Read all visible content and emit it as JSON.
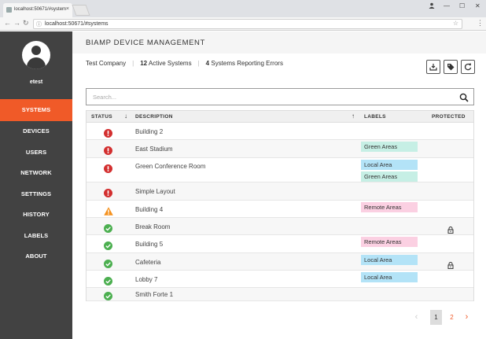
{
  "browser": {
    "tab_title": "localhost:50671/#system",
    "url": "localhost:50671/#systems",
    "tab_close": "×",
    "window_min": "—",
    "window_max": "☐",
    "window_close": "✕"
  },
  "sidebar": {
    "username": "etest",
    "items": [
      {
        "label": "SYSTEMS",
        "active": true
      },
      {
        "label": "DEVICES",
        "active": false
      },
      {
        "label": "USERS",
        "active": false
      },
      {
        "label": "NETWORK",
        "active": false
      },
      {
        "label": "SETTINGS",
        "active": false
      },
      {
        "label": "HISTORY",
        "active": false
      },
      {
        "label": "LABELS",
        "active": false
      },
      {
        "label": "ABOUT",
        "active": false
      }
    ]
  },
  "header": {
    "title": "BIAMP DEVICE MANAGEMENT"
  },
  "summary": {
    "company": "Test Company",
    "active_count": "12",
    "active_label": "Active Systems",
    "error_count": "4",
    "error_label": "Systems Reporting Errors"
  },
  "search": {
    "placeholder": "Search..."
  },
  "table": {
    "columns": {
      "status": "STATUS",
      "status_sort": "↓",
      "description": "DESCRIPTION",
      "description_sort": "↑",
      "labels": "LABELS",
      "protected": "PROTECTED"
    },
    "rows": [
      {
        "status": "error",
        "description": "Building 2",
        "labels": [],
        "protected": false
      },
      {
        "status": "error",
        "description": "East Stadium",
        "labels": [
          {
            "text": "Green Areas",
            "color": "green"
          }
        ],
        "protected": false
      },
      {
        "status": "error",
        "description": "Green Conference Room",
        "labels": [
          {
            "text": "Local Area",
            "color": "blue"
          },
          {
            "text": "Green Areas",
            "color": "green"
          }
        ],
        "protected": false
      },
      {
        "status": "error",
        "description": "Simple Layout",
        "labels": [],
        "protected": false
      },
      {
        "status": "warning",
        "description": "Building 4",
        "labels": [
          {
            "text": "Remote Areas",
            "color": "pink"
          }
        ],
        "protected": false
      },
      {
        "status": "ok",
        "description": "Break Room",
        "labels": [],
        "protected": true
      },
      {
        "status": "ok",
        "description": "Building 5",
        "labels": [
          {
            "text": "Remote Areas",
            "color": "pink"
          }
        ],
        "protected": false
      },
      {
        "status": "ok",
        "description": "Cafeteria",
        "labels": [
          {
            "text": "Local Area",
            "color": "blue"
          }
        ],
        "protected": true
      },
      {
        "status": "ok",
        "description": "Lobby 7",
        "labels": [
          {
            "text": "Local Area",
            "color": "blue"
          }
        ],
        "protected": false
      },
      {
        "status": "ok",
        "description": "Smith Forte 1",
        "labels": [],
        "protected": false
      }
    ]
  },
  "pagination": {
    "prev": "‹",
    "pages": [
      "1",
      "2"
    ],
    "current": "1",
    "next": "›"
  },
  "colors": {
    "accent": "#f05a28",
    "sidebar_bg": "#424242",
    "error": "#d32f2f",
    "warning": "#f5921f",
    "ok": "#4caf50"
  }
}
